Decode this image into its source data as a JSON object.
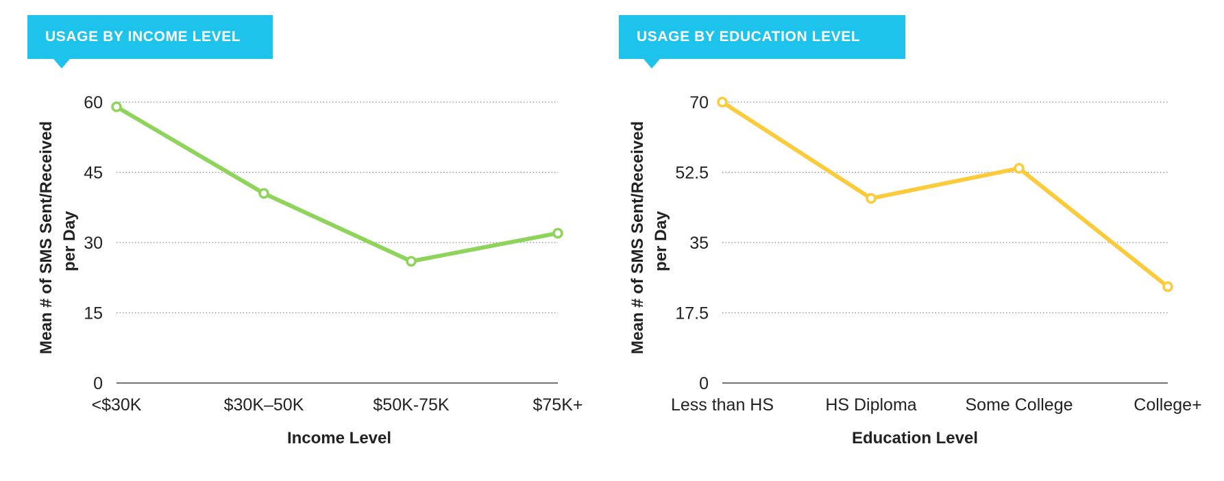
{
  "charts": [
    {
      "tag": "USAGE BY INCOME LEVEL",
      "ylabel_line1": "Mean # of SMS Sent/Received",
      "ylabel_line2": "per Day",
      "xlabel": "Income Level"
    },
    {
      "tag": "USAGE BY EDUCATION LEVEL",
      "ylabel_line1": "Mean # of SMS Sent/Received",
      "ylabel_line2": "per Day",
      "xlabel": "Education Level"
    }
  ],
  "chart_data": [
    {
      "type": "line",
      "title": "USAGE BY INCOME LEVEL",
      "xlabel": "Income Level",
      "ylabel": "Mean # of SMS Sent/Received per Day",
      "categories": [
        "<$30K",
        "$30K–50K",
        "$50K-75K",
        "$75K+"
      ],
      "series": [
        {
          "values": [
            59,
            40.5,
            26,
            32
          ]
        }
      ],
      "ylim": [
        0,
        60
      ],
      "yticks": [
        "0",
        "15",
        "30",
        "45",
        "60"
      ],
      "ytick_values": [
        0,
        15,
        30,
        45,
        60
      ],
      "color": "#8fd45a",
      "grid": true,
      "legend": "none"
    },
    {
      "type": "line",
      "title": "USAGE BY EDUCATION LEVEL",
      "xlabel": "Education Level",
      "ylabel": "Mean # of SMS Sent/Received per Day",
      "categories": [
        "Less than HS",
        "HS Diploma",
        "Some College",
        "College+"
      ],
      "series": [
        {
          "values": [
            70,
            46,
            53.5,
            24
          ]
        }
      ],
      "ylim": [
        0,
        70
      ],
      "yticks": [
        "0",
        "17.5",
        "35",
        "52.5",
        "70"
      ],
      "ytick_values": [
        0,
        17.5,
        35,
        52.5,
        70
      ],
      "color": "#fccb3c",
      "grid": true,
      "legend": "none"
    }
  ],
  "colors": {
    "tag_background": "#1ec3ec",
    "tag_text": "#ffffff"
  }
}
